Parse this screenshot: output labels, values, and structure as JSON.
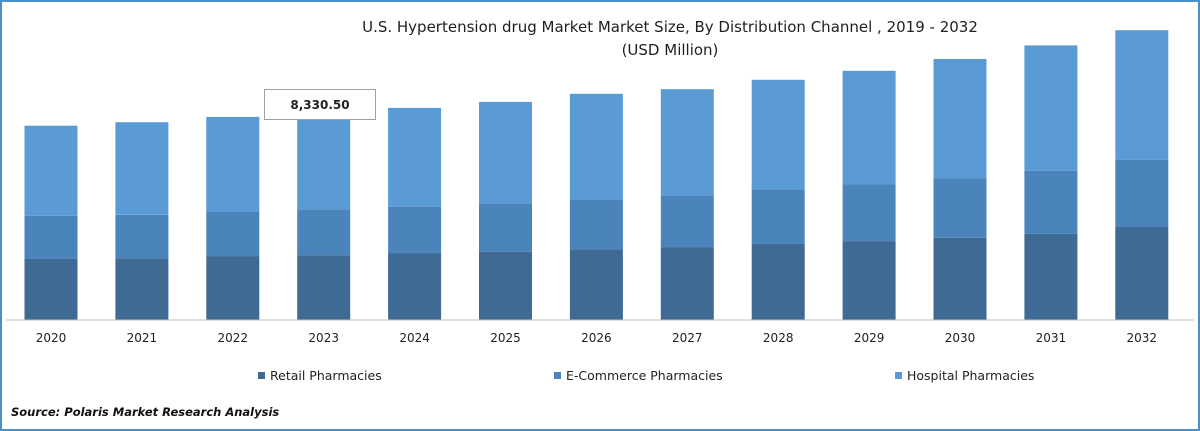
{
  "chart_data": {
    "type": "bar",
    "stacked": true,
    "title": "U.S. Hypertension drug Market Market  Size, By Distribution Channel , 2019 - 2032",
    "subtitle": "(USD Million)",
    "categories": [
      "2020",
      "2021",
      "2022",
      "2023",
      "2024",
      "2025",
      "2026",
      "2027",
      "2028",
      "2029",
      "2030",
      "2031",
      "2032"
    ],
    "series": [
      {
        "name": "Retail Pharmacies",
        "color": "#3e6a94",
        "values": [
          2650,
          2680,
          2750,
          2810,
          2880,
          2960,
          3060,
          3160,
          3300,
          3420,
          3560,
          3730,
          4030
        ]
      },
      {
        "name": "E-Commerce Pharmacies",
        "color": "#4a84ba",
        "values": [
          1870,
          1880,
          1930,
          1980,
          2030,
          2090,
          2140,
          2240,
          2370,
          2450,
          2570,
          2730,
          2910
        ]
      },
      {
        "name": "Hospital Pharmacies",
        "color": "#5b9bd5",
        "values": [
          3900,
          4010,
          4120,
          4200,
          4280,
          4400,
          4600,
          4600,
          4740,
          4930,
          5180,
          5440,
          5620
        ]
      }
    ],
    "ylim": [
      0,
      13000
    ],
    "annotation": "8,330.50",
    "grid": false,
    "legend_position": "bottom"
  },
  "source": "Source: Polaris  Market Research Analysis"
}
